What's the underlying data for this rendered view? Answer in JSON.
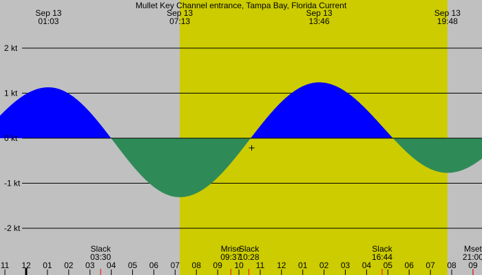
{
  "title": "Mullet Key Channel entrance, Tampa Bay, Florida Current",
  "colors": {
    "night": "#c0c0c0",
    "day": "#cccc00",
    "flood": "#0000ff",
    "ebb": "#2e8b57",
    "grid": "#000000",
    "tick_red": "#ff0000",
    "tick_hour": "#000000"
  },
  "chart_data": {
    "type": "area",
    "x_unit": "hours",
    "xlim": [
      22.8,
      33.2
    ],
    "ylim": [
      -2.6,
      2.8
    ],
    "y_ticks": [
      {
        "v": 2,
        "label": "2 kt"
      },
      {
        "v": 1,
        "label": "1 kt"
      },
      {
        "v": 0,
        "label": "0 kt"
      },
      {
        "v": -1,
        "label": "-1 kt"
      },
      {
        "v": -2,
        "label": "-2 kt"
      }
    ],
    "daylight": {
      "start": 31.22,
      "end": 43.8
    },
    "series": [
      {
        "type": "max_flood",
        "time": 25.05,
        "value": 1.13
      },
      {
        "type": "slack",
        "time": 27.5,
        "value": 0
      },
      {
        "type": "max_ebb",
        "time": 31.22,
        "value": -1.31
      },
      {
        "type": "slack",
        "time": 34.47,
        "value": 0
      },
      {
        "type": "max_flood",
        "time": 37.77,
        "value": 1.24
      },
      {
        "type": "slack",
        "time": 40.73,
        "value": 0
      },
      {
        "type": "max_ebb",
        "time": 43.8,
        "value": -0.77
      },
      {
        "type": "slack",
        "time": 46.6,
        "value": 0
      }
    ],
    "current_marker": {
      "time": 34.6,
      "value": -0.2
    },
    "top_labels": [
      {
        "date": "Sep 13",
        "time": "01:03",
        "t": 25.05
      },
      {
        "date": "Sep 13",
        "time": "07:13",
        "t": 31.22
      },
      {
        "date": "Sep 13",
        "time": "13:46",
        "t": 37.77
      },
      {
        "date": "Sep 13",
        "time": "19:48",
        "t": 43.8
      }
    ],
    "bottom_events": [
      {
        "name": "Slack",
        "time": "03:30",
        "t": 27.5
      },
      {
        "name": "Mrise",
        "time": "09:37",
        "t": 33.62
      },
      {
        "name": "Slack",
        "time": "10:28",
        "t": 34.47
      },
      {
        "name": "Slack",
        "time": "16:44",
        "t": 40.73
      },
      {
        "name": "Mset",
        "time": "21:00",
        "t": 45.0
      }
    ],
    "hour_labels": [
      "11",
      "12",
      "01",
      "02",
      "03",
      "04",
      "05",
      "06",
      "07",
      "08",
      "09",
      "10",
      "11",
      "12",
      "01",
      "02",
      "03",
      "04",
      "05",
      "06",
      "07",
      "08",
      "09"
    ],
    "hour_start": 23,
    "red_ticks": [
      27.5,
      33.62,
      34.47,
      40.73,
      45.0
    ],
    "midnight_tick": 24
  }
}
